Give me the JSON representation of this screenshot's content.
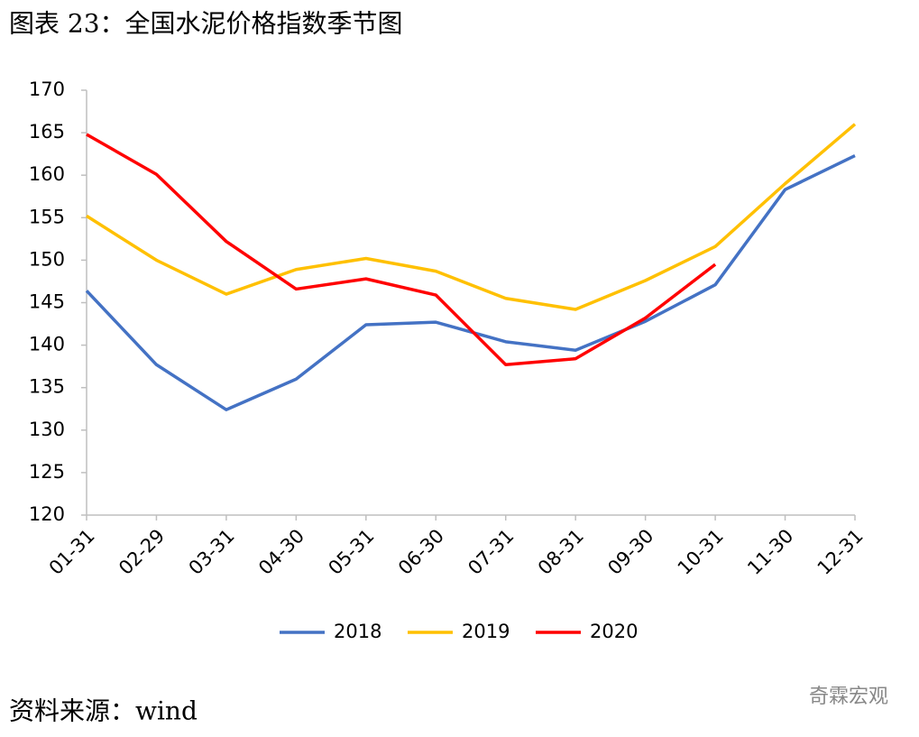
{
  "chart_data": {
    "type": "line",
    "title": "图表 23：全国水泥价格指数季节图",
    "source": "资料来源：wind",
    "watermark": "奇霖宏观",
    "categories": [
      "01-31",
      "02-29",
      "03-31",
      "04-30",
      "05-31",
      "06-30",
      "07-31",
      "08-31",
      "09-30",
      "10-31",
      "11-30",
      "12-31"
    ],
    "series": [
      {
        "name": "2018",
        "color": "#4472c4",
        "values": [
          146.4,
          137.7,
          132.4,
          136.0,
          142.4,
          142.7,
          140.4,
          139.4,
          142.8,
          147.1,
          158.3,
          162.3
        ]
      },
      {
        "name": "2019",
        "color": "#ffc000",
        "values": [
          155.2,
          150.0,
          146.0,
          148.9,
          150.2,
          148.7,
          145.5,
          144.2,
          147.6,
          151.6,
          159.0,
          166.0
        ]
      },
      {
        "name": "2020",
        "color": "#ff0000",
        "values": [
          164.8,
          160.1,
          152.2,
          146.6,
          147.8,
          145.9,
          137.7,
          138.4,
          143.2,
          149.5,
          null,
          null
        ]
      }
    ],
    "ylim": [
      120,
      170
    ],
    "yticks": [
      120,
      125,
      130,
      135,
      140,
      145,
      150,
      155,
      160,
      165,
      170
    ],
    "grid": false,
    "legend": "bottom"
  }
}
